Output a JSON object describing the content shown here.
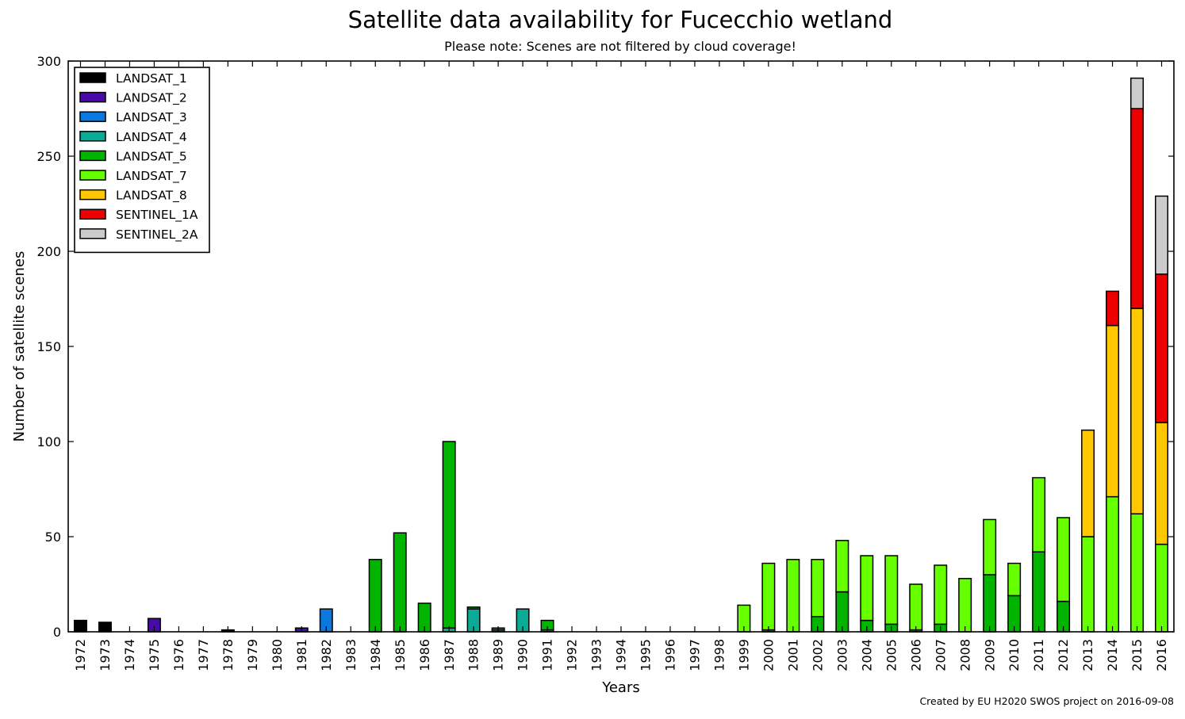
{
  "title": "Satellite data availability for Fucecchio wetland",
  "subtitle": "Please note: Scenes are not filtered by cloud coverage!",
  "credit": "Created by EU H2020 SWOS project on 2016-09-08",
  "chart_data": {
    "type": "bar",
    "stacked": true,
    "xlabel": "Years",
    "ylabel": "Number of satellite scenes",
    "ylim": [
      0,
      300
    ],
    "yticks": [
      0,
      50,
      100,
      150,
      200,
      250,
      300
    ],
    "grid": false,
    "legend_position": "top-left",
    "categories": [
      "1972",
      "1973",
      "1974",
      "1975",
      "1976",
      "1977",
      "1978",
      "1979",
      "1980",
      "1981",
      "1982",
      "1983",
      "1984",
      "1985",
      "1986",
      "1987",
      "1988",
      "1989",
      "1990",
      "1991",
      "1992",
      "1993",
      "1994",
      "1995",
      "1996",
      "1997",
      "1998",
      "1999",
      "2000",
      "2001",
      "2002",
      "2003",
      "2004",
      "2005",
      "2006",
      "2007",
      "2008",
      "2009",
      "2010",
      "2011",
      "2012",
      "2013",
      "2014",
      "2015",
      "2016"
    ],
    "series": [
      {
        "name": "LANDSAT_1",
        "color": "#000000",
        "values": [
          6,
          5,
          0,
          0,
          0,
          0,
          1,
          0,
          0,
          0,
          0,
          0,
          0,
          0,
          0,
          0,
          0,
          0,
          0,
          0,
          0,
          0,
          0,
          0,
          0,
          0,
          0,
          0,
          0,
          0,
          0,
          0,
          0,
          0,
          0,
          0,
          0,
          0,
          0,
          0,
          0,
          0,
          0,
          0,
          0
        ]
      },
      {
        "name": "LANDSAT_2",
        "color": "#4a0aaa",
        "values": [
          0,
          0,
          0,
          7,
          0,
          0,
          0,
          0,
          0,
          2,
          0,
          0,
          0,
          0,
          0,
          0,
          0,
          0,
          0,
          0,
          0,
          0,
          0,
          0,
          0,
          0,
          0,
          0,
          0,
          0,
          0,
          0,
          0,
          0,
          0,
          0,
          0,
          0,
          0,
          0,
          0,
          0,
          0,
          0,
          0
        ]
      },
      {
        "name": "LANDSAT_3",
        "color": "#0a78dc",
        "values": [
          0,
          0,
          0,
          0,
          0,
          0,
          0,
          0,
          0,
          0,
          12,
          0,
          0,
          0,
          0,
          0,
          0,
          0,
          0,
          0,
          0,
          0,
          0,
          0,
          0,
          0,
          0,
          0,
          0,
          0,
          0,
          0,
          0,
          0,
          0,
          0,
          0,
          0,
          0,
          0,
          0,
          0,
          0,
          0,
          0
        ]
      },
      {
        "name": "LANDSAT_4",
        "color": "#0aaa96",
        "values": [
          0,
          0,
          0,
          0,
          0,
          0,
          0,
          0,
          0,
          0,
          0,
          0,
          0,
          0,
          0,
          2,
          12,
          1,
          12,
          1,
          0,
          0,
          0,
          0,
          0,
          0,
          0,
          0,
          0,
          0,
          0,
          0,
          0,
          0,
          0,
          0,
          0,
          0,
          0,
          0,
          0,
          0,
          0,
          0,
          0
        ]
      },
      {
        "name": "LANDSAT_5",
        "color": "#00b400",
        "values": [
          0,
          0,
          0,
          0,
          0,
          0,
          0,
          0,
          0,
          0,
          0,
          0,
          38,
          52,
          15,
          98,
          1,
          1,
          0,
          5,
          0,
          0,
          0,
          0,
          0,
          0,
          0,
          0,
          1,
          0,
          8,
          21,
          6,
          4,
          1,
          4,
          0,
          30,
          19,
          42,
          16,
          0,
          0,
          0,
          0
        ]
      },
      {
        "name": "LANDSAT_7",
        "color": "#66ff00",
        "values": [
          0,
          0,
          0,
          0,
          0,
          0,
          0,
          0,
          0,
          0,
          0,
          0,
          0,
          0,
          0,
          0,
          0,
          0,
          0,
          0,
          0,
          0,
          0,
          0,
          0,
          0,
          0,
          14,
          35,
          38,
          30,
          27,
          34,
          36,
          24,
          31,
          28,
          29,
          17,
          39,
          44,
          50,
          71,
          62,
          46
        ]
      },
      {
        "name": "LANDSAT_8",
        "color": "#ffc800",
        "values": [
          0,
          0,
          0,
          0,
          0,
          0,
          0,
          0,
          0,
          0,
          0,
          0,
          0,
          0,
          0,
          0,
          0,
          0,
          0,
          0,
          0,
          0,
          0,
          0,
          0,
          0,
          0,
          0,
          0,
          0,
          0,
          0,
          0,
          0,
          0,
          0,
          0,
          0,
          0,
          0,
          0,
          56,
          90,
          108,
          64
        ]
      },
      {
        "name": "SENTINEL_1A",
        "color": "#ee0000",
        "values": [
          0,
          0,
          0,
          0,
          0,
          0,
          0,
          0,
          0,
          0,
          0,
          0,
          0,
          0,
          0,
          0,
          0,
          0,
          0,
          0,
          0,
          0,
          0,
          0,
          0,
          0,
          0,
          0,
          0,
          0,
          0,
          0,
          0,
          0,
          0,
          0,
          0,
          0,
          0,
          0,
          0,
          0,
          18,
          105,
          78
        ]
      },
      {
        "name": "SENTINEL_2A",
        "color": "#cccccc",
        "values": [
          0,
          0,
          0,
          0,
          0,
          0,
          0,
          0,
          0,
          0,
          0,
          0,
          0,
          0,
          0,
          0,
          0,
          0,
          0,
          0,
          0,
          0,
          0,
          0,
          0,
          0,
          0,
          0,
          0,
          0,
          0,
          0,
          0,
          0,
          0,
          0,
          0,
          0,
          0,
          0,
          0,
          0,
          0,
          16,
          41
        ]
      }
    ]
  }
}
